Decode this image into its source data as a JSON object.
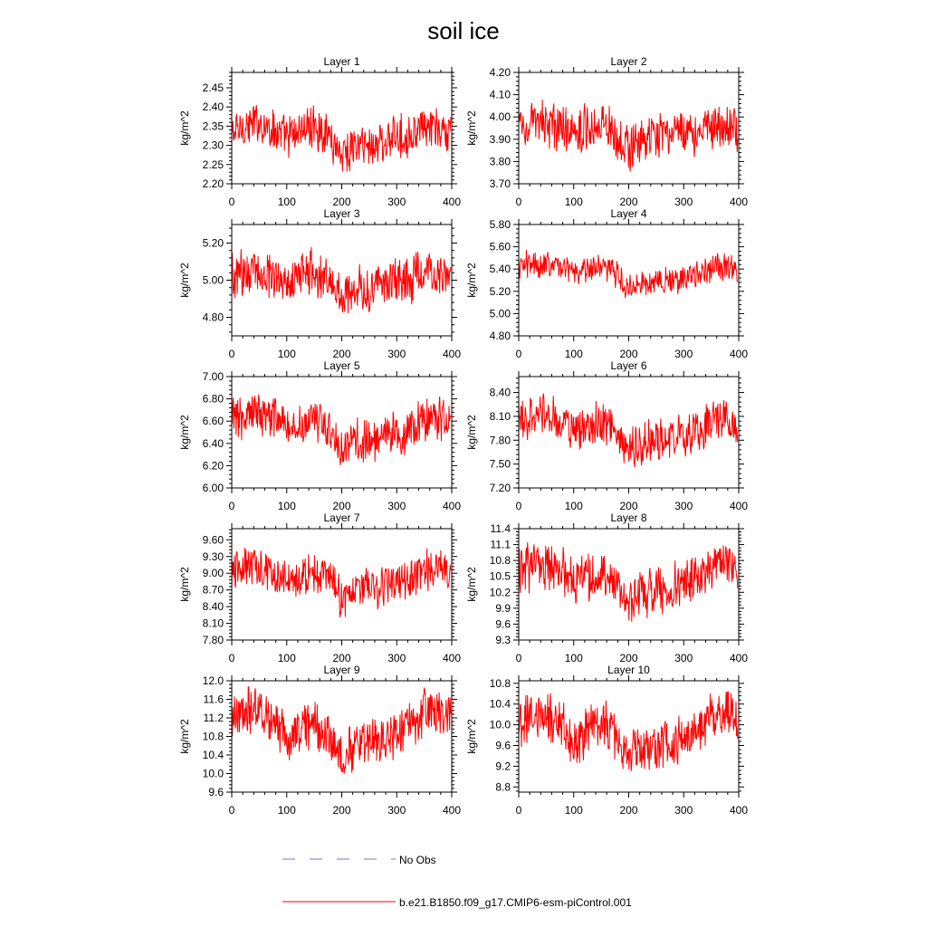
{
  "figure": {
    "title": "soil ice",
    "legend": [
      {
        "label": "No Obs",
        "color": "#7777cc",
        "style": "dashed"
      },
      {
        "label": "b.e21.B1850.f09_g17.CMIP6-esm-piControl.001",
        "color": "#ff0000",
        "style": "solid"
      }
    ]
  },
  "chart_data": [
    {
      "type": "line",
      "title": "Layer 1",
      "ylabel": "kg/m^2",
      "xlim": [
        0,
        400
      ],
      "ylim": [
        2.2,
        2.49
      ],
      "xticks": [
        "0",
        "100",
        "200",
        "300",
        "400"
      ],
      "yticks": [
        "2.20",
        "2.25",
        "2.30",
        "2.35",
        "2.40",
        "2.45"
      ],
      "series": [
        {
          "name": "b.e21.B1850.f09_g17.CMIP6-esm-piControl.001",
          "color": "#ff0000",
          "x": [
            0,
            25,
            50,
            75,
            100,
            125,
            150,
            175,
            200,
            225,
            250,
            275,
            300,
            325,
            350,
            375,
            398
          ],
          "y": [
            2.33,
            2.35,
            2.36,
            2.34,
            2.32,
            2.34,
            2.35,
            2.33,
            2.28,
            2.3,
            2.3,
            2.31,
            2.32,
            2.33,
            2.34,
            2.34,
            2.33
          ],
          "noise": 0.065
        }
      ]
    },
    {
      "type": "line",
      "title": "Layer 2",
      "ylabel": "kg/m^2",
      "xlim": [
        0,
        400
      ],
      "ylim": [
        3.7,
        4.2
      ],
      "xticks": [
        "0",
        "100",
        "200",
        "300",
        "400"
      ],
      "yticks": [
        "3.70",
        "3.80",
        "3.90",
        "4.00",
        "4.10",
        "4.20"
      ],
      "series": [
        {
          "name": "b.e21.B1850.f09_g17.CMIP6-esm-piControl.001",
          "color": "#ff0000",
          "x": [
            0,
            25,
            50,
            75,
            100,
            125,
            150,
            175,
            200,
            225,
            250,
            275,
            300,
            325,
            350,
            375,
            398
          ],
          "y": [
            3.96,
            3.97,
            3.97,
            3.95,
            3.94,
            3.96,
            3.97,
            3.93,
            3.86,
            3.89,
            3.9,
            3.92,
            3.93,
            3.94,
            3.96,
            3.96,
            3.93
          ],
          "noise": 0.12
        }
      ]
    },
    {
      "type": "line",
      "title": "Layer 3",
      "ylabel": "kg/m^2",
      "xlim": [
        0,
        400
      ],
      "ylim": [
        4.7,
        5.3
      ],
      "xticks": [
        "0",
        "100",
        "200",
        "300",
        "400"
      ],
      "yticks": [
        "4.80",
        "5.00",
        "5.20"
      ],
      "series": [
        {
          "name": "b.e21.B1850.f09_g17.CMIP6-esm-piControl.001",
          "color": "#ff0000",
          "x": [
            0,
            25,
            50,
            75,
            100,
            125,
            150,
            175,
            200,
            225,
            250,
            275,
            300,
            325,
            350,
            375,
            398
          ],
          "y": [
            5.02,
            5.04,
            5.05,
            5.03,
            5.0,
            5.03,
            5.04,
            5.0,
            4.92,
            4.96,
            4.96,
            4.98,
            4.99,
            5.0,
            5.03,
            5.02,
            5.0
          ],
          "noise": 0.15
        }
      ]
    },
    {
      "type": "line",
      "title": "Layer 4",
      "ylabel": "kg/m^2",
      "xlim": [
        0,
        400
      ],
      "ylim": [
        4.8,
        5.8
      ],
      "xticks": [
        "0",
        "100",
        "200",
        "300",
        "400"
      ],
      "yticks": [
        "4.80",
        "5.00",
        "5.20",
        "5.40",
        "5.60",
        "5.80"
      ],
      "series": [
        {
          "name": "b.e21.B1850.f09_g17.CMIP6-esm-piControl.001",
          "color": "#ff0000",
          "x": [
            0,
            25,
            50,
            75,
            100,
            125,
            150,
            175,
            200,
            225,
            250,
            275,
            300,
            325,
            350,
            375,
            398
          ],
          "y": [
            5.42,
            5.44,
            5.46,
            5.42,
            5.38,
            5.4,
            5.42,
            5.36,
            5.22,
            5.28,
            5.3,
            5.31,
            5.32,
            5.34,
            5.4,
            5.44,
            5.36
          ],
          "noise": 0.15
        }
      ]
    },
    {
      "type": "line",
      "title": "Layer 5",
      "ylabel": "kg/m^2",
      "xlim": [
        0,
        400
      ],
      "ylim": [
        6.0,
        7.0
      ],
      "xticks": [
        "0",
        "100",
        "200",
        "300",
        "400"
      ],
      "yticks": [
        "6.00",
        "6.20",
        "6.40",
        "6.60",
        "6.80",
        "7.00"
      ],
      "series": [
        {
          "name": "b.e21.B1850.f09_g17.CMIP6-esm-piControl.001",
          "color": "#ff0000",
          "x": [
            0,
            25,
            50,
            75,
            100,
            125,
            150,
            175,
            200,
            225,
            250,
            275,
            300,
            325,
            350,
            375,
            398
          ],
          "y": [
            6.62,
            6.66,
            6.68,
            6.64,
            6.55,
            6.58,
            6.62,
            6.55,
            6.36,
            6.42,
            6.44,
            6.46,
            6.48,
            6.52,
            6.6,
            6.66,
            6.56
          ],
          "noise": 0.24
        }
      ]
    },
    {
      "type": "line",
      "title": "Layer 6",
      "ylabel": "kg/m^2",
      "xlim": [
        0,
        400
      ],
      "ylim": [
        7.2,
        8.6
      ],
      "xticks": [
        "0",
        "100",
        "200",
        "300",
        "400"
      ],
      "yticks": [
        "7.20",
        "7.50",
        "7.80",
        "8.10",
        "8.40"
      ],
      "series": [
        {
          "name": "b.e21.B1850.f09_g17.CMIP6-esm-piControl.001",
          "color": "#ff0000",
          "x": [
            0,
            25,
            50,
            75,
            100,
            125,
            150,
            175,
            200,
            225,
            250,
            275,
            300,
            325,
            350,
            375,
            398
          ],
          "y": [
            8.05,
            8.1,
            8.12,
            8.04,
            7.92,
            7.96,
            8.02,
            7.94,
            7.66,
            7.76,
            7.8,
            7.82,
            7.84,
            7.9,
            8.02,
            8.12,
            7.96
          ],
          "noise": 0.32
        }
      ]
    },
    {
      "type": "line",
      "title": "Layer 7",
      "ylabel": "kg/m^2",
      "xlim": [
        0,
        400
      ],
      "ylim": [
        7.8,
        9.8
      ],
      "xticks": [
        "0",
        "100",
        "200",
        "300",
        "400"
      ],
      "yticks": [
        "7.80",
        "8.10",
        "8.40",
        "8.70",
        "9.00",
        "9.30",
        "9.60"
      ],
      "series": [
        {
          "name": "b.e21.B1850.f09_g17.CMIP6-esm-piControl.001",
          "color": "#ff0000",
          "x": [
            0,
            25,
            50,
            75,
            100,
            125,
            150,
            175,
            200,
            225,
            250,
            275,
            300,
            325,
            350,
            375,
            398
          ],
          "y": [
            9.05,
            9.1,
            9.12,
            9.04,
            8.9,
            8.95,
            9.0,
            8.92,
            8.55,
            8.7,
            8.74,
            8.76,
            8.8,
            8.88,
            9.02,
            9.14,
            8.98
          ],
          "noise": 0.42
        }
      ]
    },
    {
      "type": "line",
      "title": "Layer 8",
      "ylabel": "kg/m^2",
      "xlim": [
        0,
        400
      ],
      "ylim": [
        9.3,
        11.4
      ],
      "xticks": [
        "0",
        "100",
        "200",
        "300",
        "400"
      ],
      "yticks": [
        "9.3",
        "9.6",
        "9.9",
        "10.2",
        "10.5",
        "10.8",
        "11.1",
        "11.4"
      ],
      "series": [
        {
          "name": "b.e21.B1850.f09_g17.CMIP6-esm-piControl.001",
          "color": "#ff0000",
          "x": [
            0,
            25,
            50,
            75,
            100,
            125,
            150,
            175,
            200,
            225,
            250,
            275,
            300,
            325,
            350,
            375,
            398
          ],
          "y": [
            10.62,
            10.68,
            10.7,
            10.62,
            10.4,
            10.46,
            10.55,
            10.45,
            9.95,
            10.18,
            10.25,
            10.28,
            10.35,
            10.45,
            10.65,
            10.78,
            10.58
          ],
          "noise": 0.52
        }
      ]
    },
    {
      "type": "line",
      "title": "Layer 9",
      "ylabel": "kg/m^2",
      "xlim": [
        0,
        400
      ],
      "ylim": [
        9.6,
        12.0
      ],
      "xticks": [
        "0",
        "100",
        "200",
        "300",
        "400"
      ],
      "yticks": [
        "9.6",
        "10.0",
        "10.4",
        "10.8",
        "11.2",
        "11.6",
        "12.0"
      ],
      "series": [
        {
          "name": "b.e21.B1850.f09_g17.CMIP6-esm-piControl.001",
          "color": "#ff0000",
          "x": [
            0,
            25,
            50,
            75,
            100,
            125,
            150,
            175,
            200,
            225,
            250,
            275,
            300,
            325,
            350,
            375,
            398
          ],
          "y": [
            11.15,
            11.3,
            11.35,
            11.2,
            10.8,
            10.95,
            11.05,
            10.9,
            10.4,
            10.6,
            10.7,
            10.75,
            10.85,
            11.05,
            11.3,
            11.4,
            11.2
          ],
          "noise": 0.6
        }
      ]
    },
    {
      "type": "line",
      "title": "Layer 10",
      "ylabel": "kg/m^2",
      "xlim": [
        0,
        400
      ],
      "ylim": [
        8.7,
        10.85
      ],
      "xticks": [
        "0",
        "100",
        "200",
        "300",
        "400"
      ],
      "yticks": [
        "8.8",
        "9.2",
        "9.6",
        "10.0",
        "10.4",
        "10.8"
      ],
      "series": [
        {
          "name": "b.e21.B1850.f09_g17.CMIP6-esm-piControl.001",
          "color": "#ff0000",
          "x": [
            0,
            25,
            50,
            75,
            100,
            125,
            150,
            175,
            200,
            225,
            250,
            275,
            300,
            325,
            350,
            375,
            398
          ],
          "y": [
            10.05,
            10.15,
            10.2,
            10.05,
            9.6,
            9.85,
            10.1,
            9.85,
            9.35,
            9.5,
            9.6,
            9.62,
            9.7,
            9.9,
            10.15,
            10.25,
            10.05
          ],
          "noise": 0.55
        }
      ]
    }
  ]
}
